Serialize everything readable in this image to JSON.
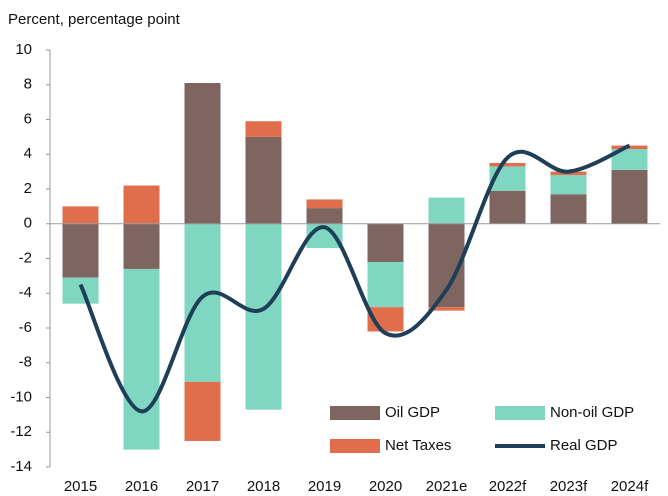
{
  "chart_data": {
    "type": "bar",
    "stacked": true,
    "subtitle": "Percent, percentage point",
    "categories": [
      "2015",
      "2016",
      "2017",
      "2018",
      "2019",
      "2020",
      "2021e",
      "2022f",
      "2023f",
      "2024f"
    ],
    "series": [
      {
        "name": "Oil GDP",
        "color": "#7f6560",
        "values": [
          -3.1,
          -2.6,
          8.1,
          5.0,
          0.9,
          -2.2,
          -4.8,
          1.9,
          1.7,
          3.1
        ]
      },
      {
        "name": "Non-oil GDP",
        "color": "#7fd6c1",
        "values": [
          -1.5,
          -10.4,
          -9.1,
          -10.7,
          -1.4,
          -2.6,
          1.5,
          1.4,
          1.1,
          1.2
        ]
      },
      {
        "name": "Net Taxes",
        "color": "#e06d4b",
        "values": [
          1.0,
          2.2,
          -3.4,
          0.9,
          0.5,
          -1.4,
          -0.2,
          0.2,
          0.2,
          0.2
        ]
      }
    ],
    "line": {
      "name": "Real GDP",
      "color": "#1f3e58",
      "values": [
        -3.5,
        -10.8,
        -4.2,
        -4.9,
        -0.2,
        -6.3,
        -3.8,
        3.8,
        3.0,
        4.5
      ]
    },
    "ylim": [
      -14,
      10
    ],
    "yticks": [
      -14,
      -12,
      -10,
      -8,
      -6,
      -4,
      -2,
      0,
      2,
      4,
      6,
      8,
      10
    ],
    "legend": "bottom-right"
  }
}
